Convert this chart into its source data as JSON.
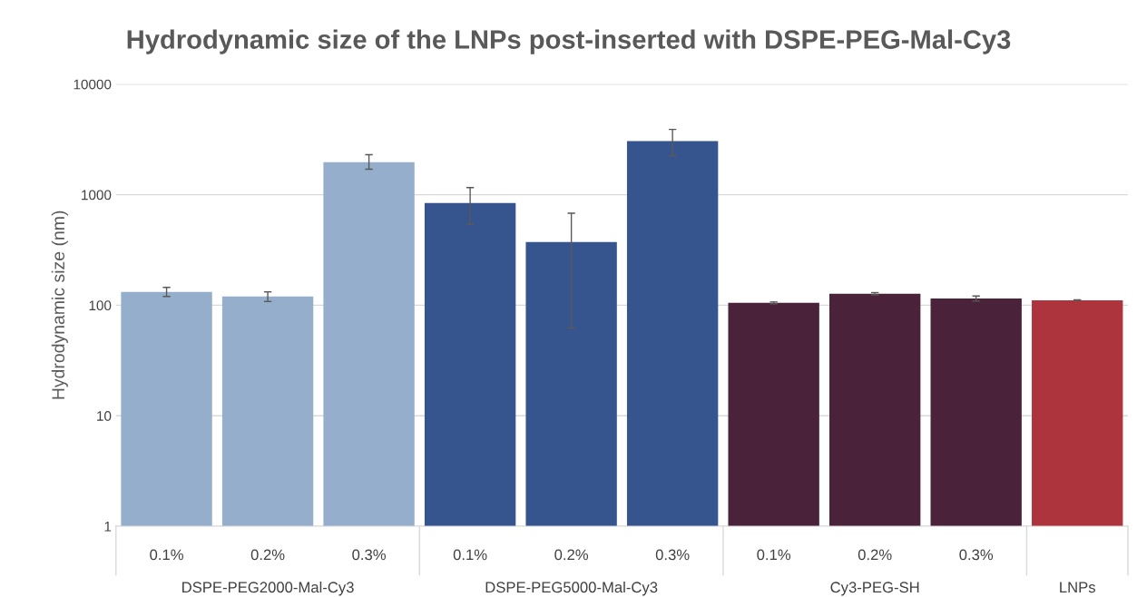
{
  "chart_data": {
    "type": "bar",
    "title": "Hydrodynamic size of the LNPs post-inserted with DSPE-PEG-Mal-Cy3",
    "ylabel": "Hydrodynamic size (nm)",
    "categories": [
      "0.1%",
      "0.2%",
      "0.3%",
      "0.1%",
      "0.2%",
      "0.3%",
      "0.1%",
      "0.2%",
      "0.3%",
      null
    ],
    "values": [
      132,
      120,
      1970,
      842,
      373,
      3050,
      105,
      127,
      115,
      111
    ],
    "errors": [
      [
        120,
        145
      ],
      [
        108,
        132
      ],
      [
        1700,
        2300
      ],
      [
        540,
        1160
      ],
      [
        62,
        680
      ],
      [
        2250,
        3900
      ],
      [
        103,
        107
      ],
      [
        124,
        130
      ],
      [
        109,
        121
      ],
      [
        110,
        112
      ]
    ],
    "colors": [
      "#94aecb",
      "#94aecb",
      "#94aecb",
      "#36558f",
      "#36558f",
      "#36558f",
      "#4a233b",
      "#4a233b",
      "#4a233b",
      "#ad333c"
    ],
    "annotations": [
      "DSPE-PEG2000-Mal-Cy3",
      "DSPE-PEG5000-Mal-Cy3",
      "Cy3-PEG-SH",
      "LNPs"
    ],
    "log": "y",
    "ylim": [
      1,
      10000
    ],
    "yticks": [
      1,
      10,
      100,
      1000,
      10000
    ],
    "grid": "y"
  }
}
